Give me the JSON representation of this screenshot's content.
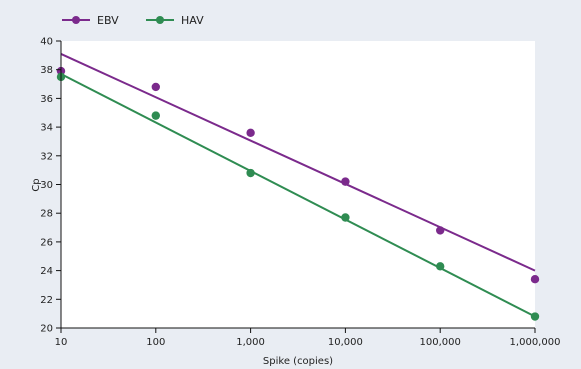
{
  "chart_data": {
    "type": "scatter",
    "title": "",
    "xlabel": "Spike (copies)",
    "ylabel": "Cp",
    "x_scale": "log",
    "xlim": [
      10,
      1000000
    ],
    "ylim": [
      20,
      40
    ],
    "x_ticks": [
      10,
      100,
      1000,
      10000,
      100000,
      1000000
    ],
    "x_tick_labels": [
      "10",
      "100",
      "1,000",
      "10,000",
      "100,000",
      "1,000,000"
    ],
    "y_ticks": [
      20,
      22,
      24,
      26,
      28,
      30,
      32,
      34,
      36,
      38,
      40
    ],
    "y_tick_labels": [
      "20",
      "22",
      "24",
      "26",
      "28",
      "30",
      "32",
      "34",
      "36",
      "38",
      "40"
    ],
    "grid": false,
    "legend_position": "top",
    "series": [
      {
        "name": "EBV",
        "color": "#7b2a8c",
        "x": [
          10,
          100,
          1000,
          10000,
          100000,
          1000000
        ],
        "y": [
          37.9,
          36.8,
          33.6,
          30.2,
          26.8,
          23.4
        ],
        "fit": {
          "x": [
            10,
            1000000
          ],
          "y": [
            39.1,
            24.0
          ]
        }
      },
      {
        "name": "HAV",
        "color": "#2f8c52",
        "x": [
          10,
          100,
          1000,
          10000,
          100000,
          1000000
        ],
        "y": [
          37.5,
          34.8,
          30.8,
          27.7,
          24.3,
          20.8
        ],
        "fit": {
          "x": [
            10,
            1000000
          ],
          "y": [
            37.7,
            20.8
          ]
        }
      }
    ]
  }
}
